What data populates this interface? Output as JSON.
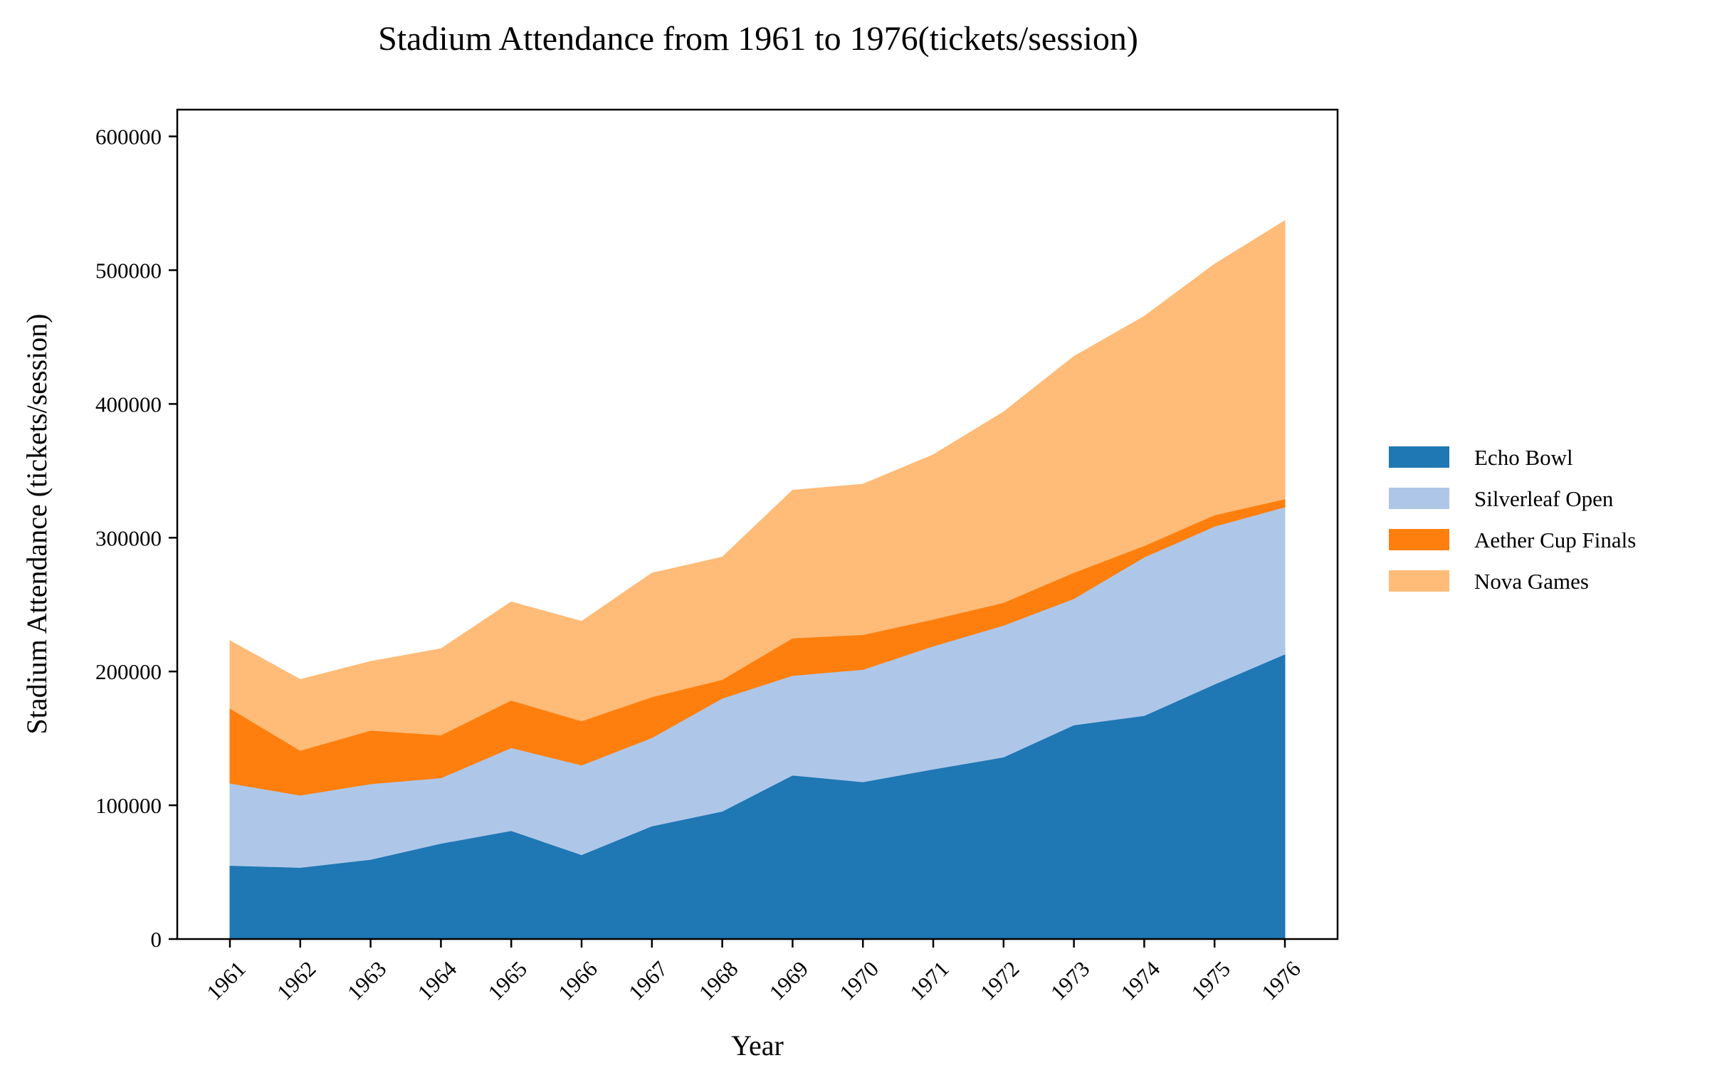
{
  "chart_data": {
    "type": "area",
    "stacked": true,
    "title": "Stadium Attendance from 1961 to 1976(tickets/session)",
    "xlabel": "Year",
    "ylabel": "Stadium Attendance (tickets/session)",
    "ylim": [
      0,
      620000
    ],
    "yticks": [
      "0",
      "100000",
      "200000",
      "300000",
      "400000",
      "500000",
      "600000"
    ],
    "categories": [
      "1961",
      "1962",
      "1963",
      "1964",
      "1965",
      "1966",
      "1967",
      "1968",
      "1969",
      "1970",
      "1971",
      "1972",
      "1973",
      "1974",
      "1975",
      "1976"
    ],
    "grid": false,
    "legend_position": "right",
    "series": [
      {
        "name": "Echo Bowl",
        "color": "#1f77b4",
        "values": [
          55000,
          53500,
          59500,
          71500,
          81000,
          63000,
          84500,
          95500,
          122500,
          117500,
          127000,
          136000,
          160000,
          167000,
          190500,
          213000
        ]
      },
      {
        "name": "Silverleaf Open",
        "color": "#aec7e8",
        "values": [
          61500,
          54000,
          56500,
          49000,
          62000,
          67000,
          66000,
          84500,
          74500,
          84000,
          92000,
          98500,
          94500,
          118500,
          118000,
          110000
        ]
      },
      {
        "name": "Aether Cup Finals",
        "color": "#ff7f0e",
        "values": [
          56000,
          33500,
          40000,
          32000,
          35500,
          33000,
          30500,
          14000,
          28000,
          26000,
          20000,
          17000,
          19500,
          8500,
          8500,
          6000
        ]
      },
      {
        "name": "Nova Games",
        "color": "#ffbb78",
        "values": [
          50500,
          53000,
          51500,
          64500,
          73500,
          74500,
          92500,
          91500,
          110500,
          112500,
          123000,
          142500,
          161500,
          171500,
          187500,
          208000
        ]
      }
    ]
  }
}
